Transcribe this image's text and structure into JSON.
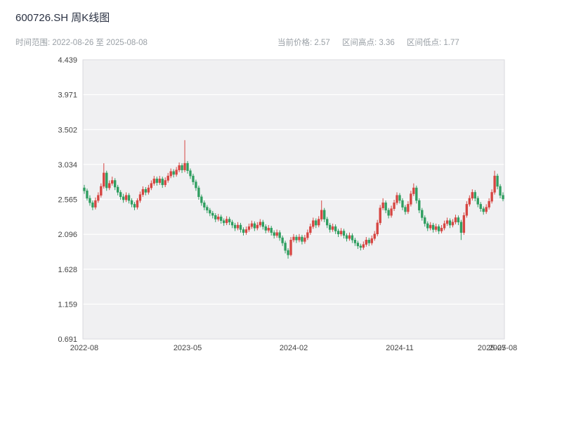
{
  "header": {
    "title": "600726.SH 周K线图",
    "time_range": "时间范围: 2022-08-26 至 2025-08-08",
    "stats": {
      "current": "当前价格: 2.57",
      "high": "区间高点: 3.36",
      "low": "区间低点: 1.77"
    }
  },
  "chart_data": {
    "type": "candlestick",
    "title": "600726.SH 周K线图",
    "symbol": "600726.SH",
    "period": "weekly",
    "date_range": [
      "2022-08-26",
      "2025-08-08"
    ],
    "current_price": 2.57,
    "range_high": 3.36,
    "range_low": 1.77,
    "ylim": [
      0.691,
      4.439
    ],
    "y_ticks": [
      "4.439",
      "3.971",
      "3.502",
      "3.034",
      "2.565",
      "2.096",
      "1.628",
      "1.159",
      "0.691"
    ],
    "x_ticks": [
      {
        "label": "2022-08",
        "index": 0
      },
      {
        "label": "2023-05",
        "index": 37
      },
      {
        "label": "2024-02",
        "index": 75
      },
      {
        "label": "2024-11",
        "index": 113
      },
      {
        "label": "2025-07",
        "index": 146
      },
      {
        "label": "2025-08",
        "index": 150
      }
    ],
    "up_color": "#d64541",
    "down_color": "#2f9e60",
    "plot_bg": "#f0f0f2",
    "grid_color": "#ffffff",
    "frame_color": "#d9d9de",
    "tick_label_color": "#444444",
    "grid_on": true,
    "legend_position": "none",
    "ohlc_format": [
      "open",
      "high",
      "low",
      "close"
    ],
    "candles": [
      [
        2.72,
        2.76,
        2.64,
        2.68
      ],
      [
        2.68,
        2.71,
        2.55,
        2.58
      ],
      [
        2.58,
        2.62,
        2.48,
        2.52
      ],
      [
        2.52,
        2.55,
        2.42,
        2.46
      ],
      [
        2.46,
        2.59,
        2.43,
        2.55
      ],
      [
        2.55,
        2.66,
        2.52,
        2.62
      ],
      [
        2.62,
        2.78,
        2.59,
        2.74
      ],
      [
        2.74,
        3.05,
        2.71,
        2.92
      ],
      [
        2.92,
        2.95,
        2.68,
        2.72
      ],
      [
        2.72,
        2.82,
        2.69,
        2.78
      ],
      [
        2.78,
        2.87,
        2.75,
        2.82
      ],
      [
        2.82,
        2.85,
        2.69,
        2.73
      ],
      [
        2.73,
        2.76,
        2.62,
        2.66
      ],
      [
        2.66,
        2.69,
        2.56,
        2.6
      ],
      [
        2.6,
        2.64,
        2.52,
        2.56
      ],
      [
        2.56,
        2.66,
        2.53,
        2.62
      ],
      [
        2.62,
        2.65,
        2.51,
        2.55
      ],
      [
        2.55,
        2.58,
        2.46,
        2.5
      ],
      [
        2.5,
        2.53,
        2.42,
        2.46
      ],
      [
        2.46,
        2.58,
        2.43,
        2.55
      ],
      [
        2.55,
        2.67,
        2.52,
        2.63
      ],
      [
        2.63,
        2.74,
        2.6,
        2.7
      ],
      [
        2.7,
        2.73,
        2.62,
        2.66
      ],
      [
        2.66,
        2.76,
        2.63,
        2.72
      ],
      [
        2.72,
        2.82,
        2.69,
        2.78
      ],
      [
        2.78,
        2.88,
        2.75,
        2.84
      ],
      [
        2.84,
        2.87,
        2.75,
        2.79
      ],
      [
        2.79,
        2.88,
        2.76,
        2.84
      ],
      [
        2.84,
        2.87,
        2.72,
        2.76
      ],
      [
        2.76,
        2.86,
        2.73,
        2.82
      ],
      [
        2.82,
        2.92,
        2.79,
        2.88
      ],
      [
        2.88,
        2.98,
        2.85,
        2.94
      ],
      [
        2.94,
        2.97,
        2.86,
        2.9
      ],
      [
        2.9,
        3.0,
        2.87,
        2.96
      ],
      [
        2.96,
        3.06,
        2.93,
        3.02
      ],
      [
        3.02,
        3.05,
        2.92,
        2.96
      ],
      [
        2.96,
        3.36,
        2.93,
        3.05
      ],
      [
        3.05,
        3.08,
        2.91,
        2.95
      ],
      [
        2.95,
        2.98,
        2.84,
        2.88
      ],
      [
        2.88,
        2.91,
        2.76,
        2.8
      ],
      [
        2.8,
        2.83,
        2.68,
        2.72
      ],
      [
        2.72,
        2.75,
        2.56,
        2.6
      ],
      [
        2.6,
        2.63,
        2.48,
        2.52
      ],
      [
        2.52,
        2.55,
        2.42,
        2.46
      ],
      [
        2.46,
        2.49,
        2.38,
        2.42
      ],
      [
        2.42,
        2.45,
        2.34,
        2.38
      ],
      [
        2.38,
        2.41,
        2.31,
        2.35
      ],
      [
        2.35,
        2.38,
        2.26,
        2.3
      ],
      [
        2.3,
        2.37,
        2.27,
        2.33
      ],
      [
        2.33,
        2.36,
        2.24,
        2.28
      ],
      [
        2.28,
        2.31,
        2.21,
        2.25
      ],
      [
        2.25,
        2.34,
        2.22,
        2.3
      ],
      [
        2.3,
        2.33,
        2.22,
        2.26
      ],
      [
        2.26,
        2.29,
        2.18,
        2.22
      ],
      [
        2.22,
        2.25,
        2.14,
        2.18
      ],
      [
        2.18,
        2.26,
        2.15,
        2.22
      ],
      [
        2.22,
        2.25,
        2.12,
        2.16
      ],
      [
        2.16,
        2.19,
        2.08,
        2.12
      ],
      [
        2.12,
        2.2,
        2.09,
        2.16
      ],
      [
        2.16,
        2.24,
        2.13,
        2.2
      ],
      [
        2.2,
        2.28,
        2.17,
        2.24
      ],
      [
        2.24,
        2.27,
        2.14,
        2.18
      ],
      [
        2.18,
        2.26,
        2.15,
        2.22
      ],
      [
        2.22,
        2.3,
        2.19,
        2.26
      ],
      [
        2.26,
        2.29,
        2.16,
        2.2
      ],
      [
        2.2,
        2.23,
        2.11,
        2.15
      ],
      [
        2.15,
        2.22,
        2.12,
        2.18
      ],
      [
        2.18,
        2.21,
        2.08,
        2.12
      ],
      [
        2.12,
        2.15,
        2.04,
        2.08
      ],
      [
        2.08,
        2.16,
        2.05,
        2.12
      ],
      [
        2.12,
        2.15,
        2.01,
        2.05
      ],
      [
        2.05,
        2.08,
        1.94,
        1.98
      ],
      [
        1.98,
        2.01,
        1.84,
        1.88
      ],
      [
        1.88,
        1.91,
        1.77,
        1.82
      ],
      [
        1.82,
        2.06,
        1.8,
        2.02
      ],
      [
        2.02,
        2.1,
        1.99,
        2.06
      ],
      [
        2.06,
        2.09,
        1.98,
        2.02
      ],
      [
        2.02,
        2.1,
        1.99,
        2.06
      ],
      [
        2.06,
        2.09,
        1.96,
        2.0
      ],
      [
        2.0,
        2.09,
        1.97,
        2.05
      ],
      [
        2.05,
        2.16,
        2.02,
        2.12
      ],
      [
        2.12,
        2.24,
        2.09,
        2.2
      ],
      [
        2.2,
        2.32,
        2.17,
        2.28
      ],
      [
        2.28,
        2.31,
        2.18,
        2.22
      ],
      [
        2.22,
        2.34,
        2.19,
        2.3
      ],
      [
        2.3,
        2.55,
        2.27,
        2.42
      ],
      [
        2.42,
        2.45,
        2.26,
        2.3
      ],
      [
        2.3,
        2.33,
        2.18,
        2.22
      ],
      [
        2.22,
        2.25,
        2.12,
        2.16
      ],
      [
        2.16,
        2.24,
        2.13,
        2.2
      ],
      [
        2.2,
        2.23,
        2.1,
        2.14
      ],
      [
        2.14,
        2.17,
        2.06,
        2.1
      ],
      [
        2.1,
        2.18,
        2.07,
        2.14
      ],
      [
        2.14,
        2.17,
        2.04,
        2.08
      ],
      [
        2.08,
        2.11,
        2.0,
        2.04
      ],
      [
        2.04,
        2.12,
        2.01,
        2.08
      ],
      [
        2.08,
        2.11,
        1.98,
        2.02
      ],
      [
        2.02,
        2.05,
        1.94,
        1.98
      ],
      [
        1.98,
        2.01,
        1.9,
        1.94
      ],
      [
        1.94,
        1.97,
        1.88,
        1.92
      ],
      [
        1.92,
        2.0,
        1.89,
        1.96
      ],
      [
        1.96,
        2.06,
        1.93,
        2.02
      ],
      [
        2.02,
        2.05,
        1.94,
        1.98
      ],
      [
        1.98,
        2.08,
        1.95,
        2.04
      ],
      [
        2.04,
        2.14,
        2.01,
        2.1
      ],
      [
        2.1,
        2.29,
        2.07,
        2.25
      ],
      [
        2.25,
        2.49,
        2.22,
        2.45
      ],
      [
        2.45,
        2.58,
        2.42,
        2.52
      ],
      [
        2.52,
        2.55,
        2.38,
        2.42
      ],
      [
        2.42,
        2.45,
        2.31,
        2.35
      ],
      [
        2.35,
        2.48,
        2.32,
        2.44
      ],
      [
        2.44,
        2.56,
        2.41,
        2.52
      ],
      [
        2.52,
        2.66,
        2.49,
        2.62
      ],
      [
        2.62,
        2.65,
        2.51,
        2.55
      ],
      [
        2.55,
        2.58,
        2.42,
        2.46
      ],
      [
        2.46,
        2.49,
        2.36,
        2.4
      ],
      [
        2.4,
        2.54,
        2.37,
        2.5
      ],
      [
        2.5,
        2.68,
        2.47,
        2.64
      ],
      [
        2.64,
        2.78,
        2.61,
        2.72
      ],
      [
        2.72,
        2.75,
        2.51,
        2.55
      ],
      [
        2.55,
        2.58,
        2.38,
        2.42
      ],
      [
        2.42,
        2.45,
        2.28,
        2.32
      ],
      [
        2.32,
        2.35,
        2.2,
        2.24
      ],
      [
        2.24,
        2.27,
        2.14,
        2.18
      ],
      [
        2.18,
        2.26,
        2.15,
        2.22
      ],
      [
        2.22,
        2.25,
        2.12,
        2.16
      ],
      [
        2.16,
        2.24,
        2.13,
        2.2
      ],
      [
        2.2,
        2.23,
        2.1,
        2.14
      ],
      [
        2.14,
        2.22,
        2.11,
        2.18
      ],
      [
        2.18,
        2.28,
        2.15,
        2.24
      ],
      [
        2.24,
        2.32,
        2.21,
        2.28
      ],
      [
        2.28,
        2.31,
        2.18,
        2.22
      ],
      [
        2.22,
        2.3,
        2.19,
        2.26
      ],
      [
        2.26,
        2.36,
        2.23,
        2.32
      ],
      [
        2.32,
        2.35,
        2.22,
        2.26
      ],
      [
        2.26,
        2.29,
        2.02,
        2.12
      ],
      [
        2.12,
        2.39,
        2.09,
        2.35
      ],
      [
        2.35,
        2.54,
        2.32,
        2.5
      ],
      [
        2.5,
        2.62,
        2.47,
        2.58
      ],
      [
        2.58,
        2.7,
        2.55,
        2.66
      ],
      [
        2.66,
        2.69,
        2.54,
        2.58
      ],
      [
        2.58,
        2.61,
        2.46,
        2.5
      ],
      [
        2.5,
        2.53,
        2.4,
        2.44
      ],
      [
        2.44,
        2.47,
        2.36,
        2.4
      ],
      [
        2.4,
        2.5,
        2.37,
        2.46
      ],
      [
        2.46,
        2.58,
        2.43,
        2.54
      ],
      [
        2.54,
        2.7,
        2.51,
        2.66
      ],
      [
        2.66,
        2.95,
        2.63,
        2.88
      ],
      [
        2.88,
        2.91,
        2.7,
        2.74
      ],
      [
        2.74,
        2.77,
        2.58,
        2.62
      ],
      [
        2.62,
        2.66,
        2.54,
        2.57
      ]
    ]
  }
}
